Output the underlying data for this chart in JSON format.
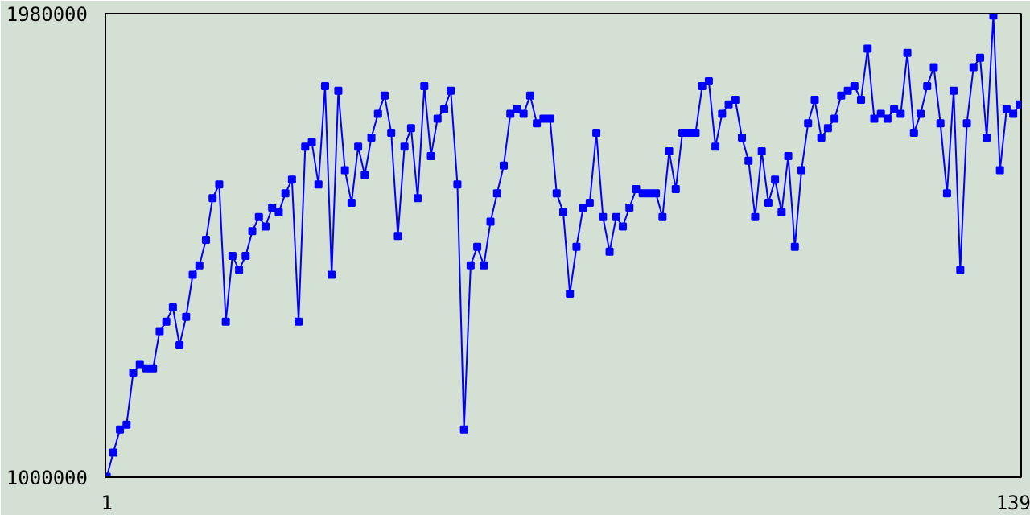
{
  "chart_data": {
    "type": "line",
    "marker": "square",
    "grid": false,
    "x": [
      1,
      2,
      3,
      4,
      5,
      6,
      7,
      8,
      9,
      10,
      11,
      12,
      13,
      14,
      15,
      16,
      17,
      18,
      19,
      20,
      21,
      22,
      23,
      24,
      25,
      26,
      27,
      28,
      29,
      30,
      31,
      32,
      33,
      34,
      35,
      36,
      37,
      38,
      39,
      40,
      41,
      42,
      43,
      44,
      45,
      46,
      47,
      48,
      49,
      50,
      51,
      52,
      53,
      54,
      55,
      56,
      57,
      58,
      59,
      60,
      61,
      62,
      63,
      64,
      65,
      66,
      67,
      68,
      69,
      70,
      71,
      72,
      73,
      74,
      75,
      76,
      77,
      78,
      79,
      80,
      81,
      82,
      83,
      84,
      85,
      86,
      87,
      88,
      89,
      90,
      91,
      92,
      93,
      94,
      95,
      96,
      97,
      98,
      99,
      100,
      101,
      102,
      103,
      104,
      105,
      106,
      107,
      108,
      109,
      110,
      111,
      112,
      113,
      114,
      115,
      116,
      117,
      118,
      119,
      120,
      121,
      122,
      123,
      124,
      125,
      126,
      127,
      128,
      129,
      130,
      131,
      132,
      133,
      134,
      135,
      136,
      137,
      138,
      139
    ],
    "series": [
      {
        "color": "#0000ff",
        "values": [
          1001000,
          1052000,
          1101000,
          1111000,
          1221000,
          1239000,
          1230000,
          1230000,
          1309000,
          1329000,
          1359000,
          1279000,
          1339000,
          1428000,
          1448000,
          1502000,
          1590000,
          1619000,
          1329000,
          1468000,
          1438000,
          1468000,
          1520000,
          1550000,
          1530000,
          1570000,
          1560000,
          1600000,
          1629000,
          1329000,
          1699000,
          1708000,
          1619000,
          1827000,
          1428000,
          1817000,
          1649000,
          1580000,
          1699000,
          1639000,
          1718000,
          1768000,
          1807000,
          1728000,
          1510000,
          1699000,
          1738000,
          1590000,
          1827000,
          1679000,
          1758000,
          1778000,
          1817000,
          1619000,
          1101000,
          1448000,
          1487000,
          1448000,
          1540000,
          1600000,
          1659000,
          1768000,
          1778000,
          1768000,
          1807000,
          1748000,
          1758000,
          1758000,
          1600000,
          1560000,
          1388000,
          1487000,
          1570000,
          1580000,
          1728000,
          1550000,
          1477000,
          1550000,
          1530000,
          1570000,
          1609000,
          1600000,
          1600000,
          1600000,
          1550000,
          1689000,
          1609000,
          1728000,
          1728000,
          1728000,
          1827000,
          1837000,
          1699000,
          1768000,
          1788000,
          1798000,
          1718000,
          1669000,
          1550000,
          1689000,
          1580000,
          1629000,
          1560000,
          1679000,
          1487000,
          1649000,
          1748000,
          1798000,
          1718000,
          1738000,
          1758000,
          1807000,
          1817000,
          1827000,
          1798000,
          1906000,
          1758000,
          1768000,
          1758000,
          1778000,
          1768000,
          1897000,
          1728000,
          1768000,
          1827000,
          1867000,
          1748000,
          1600000,
          1817000,
          1438000,
          1748000,
          1867000,
          1887000,
          1718000,
          1976000,
          1649000,
          1778000,
          1768000,
          1788000
        ]
      }
    ],
    "xlim": [
      0.8,
      139.2
    ],
    "ylim": [
      1000000,
      1980000
    ],
    "xticks": [
      1,
      139
    ],
    "yticks": [
      1000000,
      1980000
    ]
  }
}
